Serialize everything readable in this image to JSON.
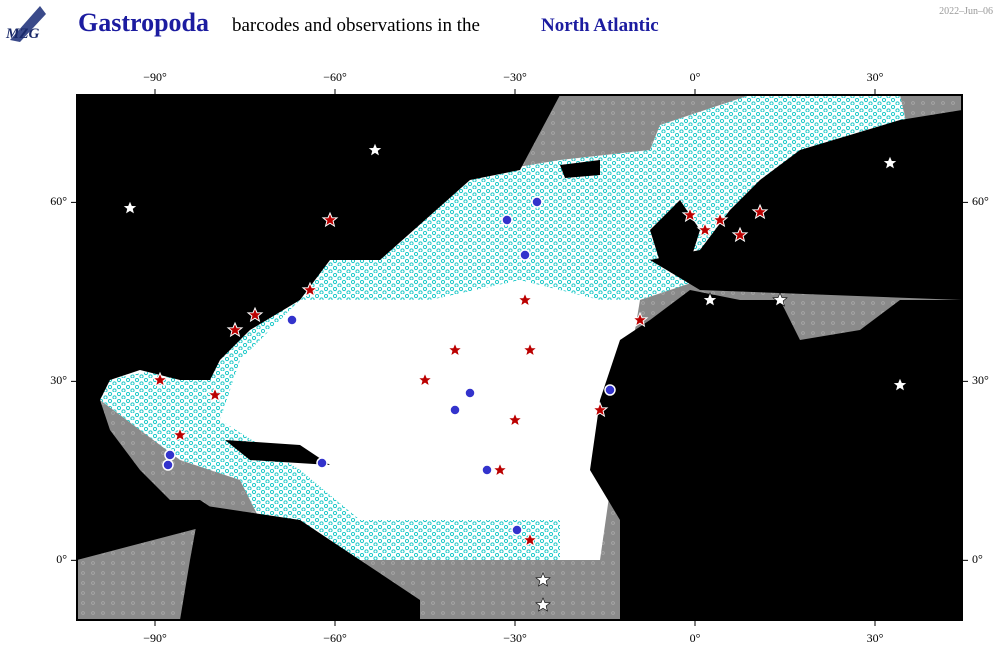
{
  "header": {
    "logo": "MZG",
    "title_taxon": "Gastropoda",
    "title_rest": "barcodes and observations in the",
    "title_region": "North Atlantic",
    "date": "2022–Jun–06"
  },
  "map": {
    "lon_range": [
      -103,
      44.5
    ],
    "lat_range": [
      -10,
      78
    ],
    "lon_ticks": [
      {
        "value": -90,
        "label": "−90°"
      },
      {
        "value": -60,
        "label": "−60°"
      },
      {
        "value": -30,
        "label": "−30°"
      },
      {
        "value": 0,
        "label": "0°"
      },
      {
        "value": 30,
        "label": "30°"
      }
    ],
    "lat_ticks": [
      {
        "value": 0,
        "label": "0°"
      },
      {
        "value": 30,
        "label": "30°"
      },
      {
        "value": 60,
        "label": "60°"
      }
    ]
  }
}
